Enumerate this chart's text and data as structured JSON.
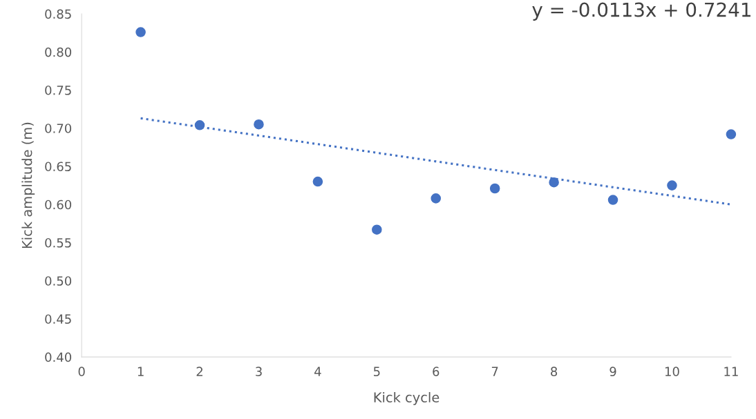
{
  "chart_data": {
    "type": "scatter",
    "xlabel": "Kick cycle",
    "ylabel": "Kick amplitude (m)",
    "series": [
      {
        "color": "#4472c4",
        "x": [
          1,
          2,
          3,
          4,
          5,
          6,
          7,
          8,
          9,
          10,
          11
        ],
        "values": [
          0.826,
          0.704,
          0.705,
          0.63,
          0.567,
          0.608,
          0.621,
          0.629,
          0.606,
          0.625,
          0.692
        ]
      },
      {
        "type": "line",
        "color": "#4472c4",
        "line_style": "dotted",
        "marker": "none",
        "x": [
          1,
          11
        ],
        "values": [
          0.713,
          0.6
        ]
      }
    ],
    "marker": "circle",
    "annotations": [
      "y = -0.0113x + 0.7241"
    ],
    "xlim": [
      0,
      11
    ],
    "xticks": [
      0,
      1,
      2,
      3,
      4,
      5,
      6,
      7,
      8,
      9,
      10,
      11
    ],
    "ylim": [
      0.4,
      0.85
    ],
    "yticks": [
      {
        "value": 0.4,
        "label": "0.40"
      },
      0.45,
      {
        "value": 0.5,
        "label": "0.50"
      },
      0.55,
      {
        "value": 0.6,
        "label": "0.60"
      },
      0.65,
      {
        "value": 0.7,
        "label": "0.70"
      },
      0.75,
      {
        "value": 0.8,
        "label": "0.80"
      },
      0.85
    ],
    "grid": false,
    "legend": false
  }
}
